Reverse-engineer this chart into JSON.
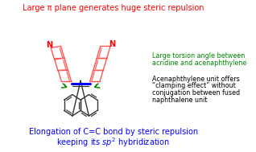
{
  "title_top": "Large π plane generates huge steric repulsion",
  "title_top_color": "#ff0000",
  "title_bottom_line1": "Elongation of C=C bond by steric repulsion",
  "title_bottom_line2": "keeping its ",
  "title_bottom_color": "#0000ff",
  "text_green_line1": "Large torsion angle between",
  "text_green_line2": "acridine and acenaphthylene",
  "text_green_color": "#008800",
  "text_black_line1": "Acenaphthylene unit offers",
  "text_black_line2": "“clamping effect” without",
  "text_black_line3": "conjugation between fused",
  "text_black_line4": "naphthalene unit",
  "text_black_color": "#000000",
  "bg_color": "#ffffff",
  "mol_color_acridine": "#ff5555",
  "mol_color_bond": "#0000ff",
  "mol_color_naph": "#333333",
  "mol_color_arrow": "#008800",
  "N_label_color": "#ff0000"
}
